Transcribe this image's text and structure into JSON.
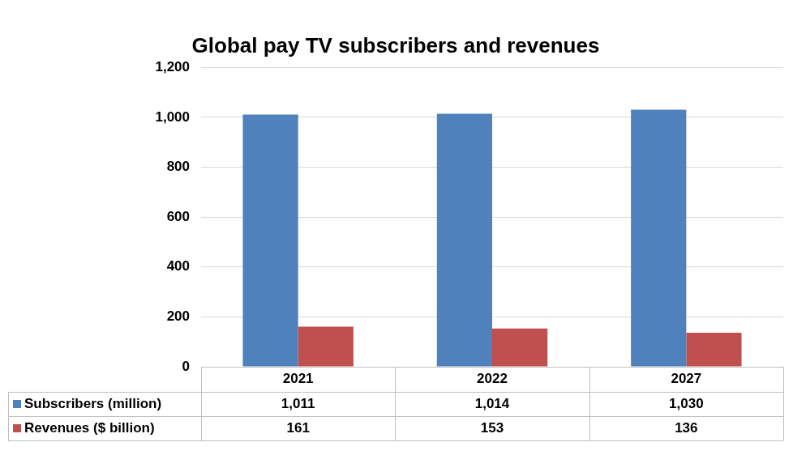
{
  "chart_data": {
    "type": "bar",
    "title": "Global pay TV subscribers and revenues",
    "categories": [
      "2021",
      "2022",
      "2027"
    ],
    "series": [
      {
        "name": "Subscribers (million)",
        "color": "#4f81bd",
        "values": [
          1011,
          1014,
          1030
        ],
        "value_labels": [
          "1,011",
          "1,014",
          "1,030"
        ]
      },
      {
        "name": "Revenues ($ billion)",
        "color": "#c0504d",
        "values": [
          161,
          153,
          136
        ]
      }
    ],
    "ylim": [
      0,
      1200
    ],
    "yticks": [
      0,
      200,
      400,
      600,
      800,
      {
        "value": 1000,
        "label": "1,000"
      },
      {
        "value": 1200,
        "label": "1,200"
      }
    ],
    "grid": true,
    "legend": "bottom"
  }
}
